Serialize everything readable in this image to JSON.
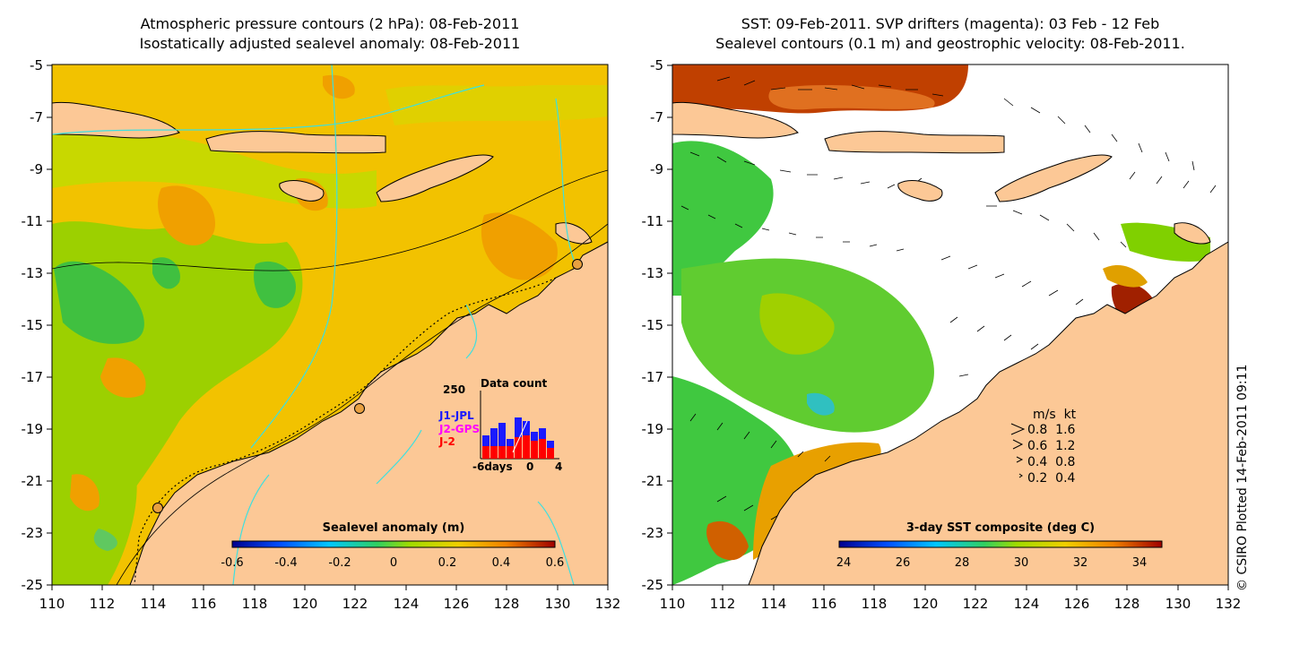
{
  "left_panel": {
    "title_line1": "Atmospheric pressure contours (2 hPa): 08-Feb-2011",
    "title_line2": "Isostatically adjusted sealevel anomaly: 08-Feb-2011",
    "colorbar": {
      "title": "Sealevel anomaly (m)",
      "ticks": [
        "-0.6",
        "-0.4",
        "-0.2",
        "0",
        "0.2",
        "0.4",
        "0.6"
      ]
    },
    "inset": {
      "title": "Data count",
      "ymax_label": "250",
      "series": [
        "J1-JPL",
        "J2-GPS",
        "J-2"
      ],
      "series_colors": [
        "#1a1aff",
        "#ff00ff",
        "#ff0000"
      ],
      "x_left": "-6days",
      "x_mid": "0",
      "x_right": "4"
    }
  },
  "right_panel": {
    "title_line1": "SST: 09-Feb-2011. SVP drifters (magenta): 03 Feb - 12 Feb",
    "title_line2": "Sealevel contours (0.1 m) and geostrophic velocity: 08-Feb-2011.",
    "colorbar": {
      "title": "3-day SST composite (deg C)",
      "ticks": [
        "24",
        "26",
        "28",
        "30",
        "32",
        "34"
      ]
    },
    "velocity_legend": {
      "header_ms": "m/s",
      "header_kt": "kt",
      "rows": [
        {
          "ms": "0.8",
          "kt": "1.6"
        },
        {
          "ms": "0.6",
          "kt": "1.2"
        },
        {
          "ms": "0.4",
          "kt": "0.8"
        },
        {
          "ms": "0.2",
          "kt": "0.4"
        }
      ]
    }
  },
  "axes": {
    "lat_ticks": [
      "-5",
      "-7",
      "-9",
      "-11",
      "-13",
      "-15",
      "-17",
      "-19",
      "-21",
      "-23",
      "-25"
    ],
    "lon_ticks": [
      "110",
      "112",
      "114",
      "116",
      "118",
      "120",
      "122",
      "124",
      "126",
      "128",
      "130",
      "132"
    ]
  },
  "credit": "© CSIRO Plotted 14-Feb-2011 09:11",
  "colors": {
    "land": "#fcc896",
    "contour_cyan": "#3de0e0",
    "ocean_base": "#f0c000"
  }
}
